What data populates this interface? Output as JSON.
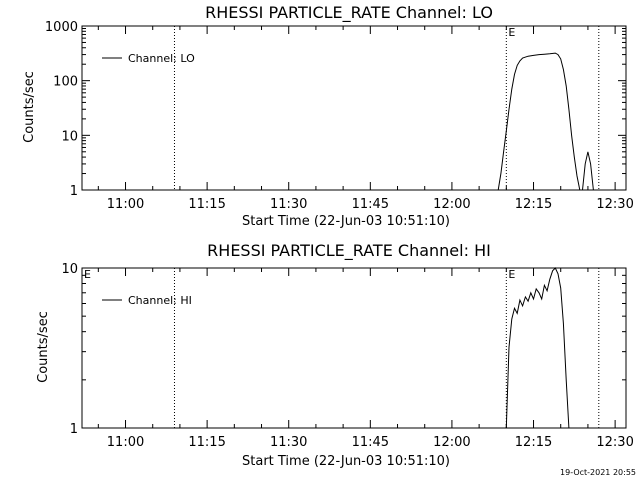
{
  "footer": {
    "timestamp": "19-Oct-2021 20:55"
  },
  "chart_data": [
    {
      "type": "line",
      "title": "RHESSI PARTICLE_RATE Channel: LO",
      "xlabel": "Start Time (22-Jun-03 10:51:10)",
      "ylabel": "Counts/sec",
      "y_scale": "log",
      "ylim": [
        1,
        1000
      ],
      "y_ticks": [
        {
          "value": 1,
          "label": "1"
        },
        {
          "value": 10,
          "label": "10"
        },
        {
          "value": 100,
          "label": "100"
        },
        {
          "value": 1000,
          "label": "1000"
        }
      ],
      "xlim": [
        "10:52",
        "12:32"
      ],
      "x_ticks": [
        "11:00",
        "11:15",
        "11:30",
        "11:45",
        "12:00",
        "12:15",
        "12:30"
      ],
      "grid": false,
      "legend": {
        "position": "top-left",
        "entries": [
          "Channel: LO"
        ]
      },
      "markers": [
        {
          "time": "11:09",
          "label": ""
        },
        {
          "time": "12:10",
          "label": "E"
        },
        {
          "time": "12:27",
          "label": ""
        }
      ],
      "series": [
        {
          "name": "Channel: LO",
          "segments": [
            [
              [
                "12:08:30",
                1
              ],
              [
                "12:09:00",
                2
              ],
              [
                "12:09:30",
                5
              ],
              [
                "12:10:00",
                12
              ],
              [
                "12:10:30",
                30
              ],
              [
                "12:11:00",
                70
              ],
              [
                "12:11:30",
                130
              ],
              [
                "12:12:00",
                190
              ],
              [
                "12:12:30",
                230
              ],
              [
                "12:13:00",
                260
              ],
              [
                "12:14:00",
                280
              ],
              [
                "12:15:00",
                290
              ],
              [
                "12:16:00",
                300
              ],
              [
                "12:17:00",
                305
              ],
              [
                "12:18:00",
                310
              ],
              [
                "12:19:00",
                320
              ],
              [
                "12:19:30",
                300
              ],
              [
                "12:20:00",
                250
              ],
              [
                "12:20:30",
                160
              ],
              [
                "12:21:00",
                80
              ],
              [
                "12:21:30",
                30
              ],
              [
                "12:22:00",
                10
              ],
              [
                "12:22:30",
                4
              ],
              [
                "12:23:00",
                1.8
              ],
              [
                "12:23:30",
                1
              ]
            ],
            [
              [
                "12:24:00",
                1
              ],
              [
                "12:24:30",
                3
              ],
              [
                "12:25:00",
                5
              ],
              [
                "12:25:30",
                3
              ],
              [
                "12:26:00",
                1
              ]
            ]
          ]
        }
      ]
    },
    {
      "type": "line",
      "title": "RHESSI PARTICLE_RATE Channel: HI",
      "xlabel": "Start Time (22-Jun-03 10:51:10)",
      "ylabel": "Counts/sec",
      "y_scale": "log",
      "ylim": [
        1,
        10
      ],
      "y_ticks": [
        {
          "value": 1,
          "label": "1"
        },
        {
          "value": 10,
          "label": "10"
        }
      ],
      "xlim": [
        "10:52",
        "12:32"
      ],
      "x_ticks": [
        "11:00",
        "11:15",
        "11:30",
        "11:45",
        "12:00",
        "12:15",
        "12:30"
      ],
      "grid": false,
      "legend": {
        "position": "top-left",
        "entries": [
          "Channel: HI"
        ]
      },
      "markers": [
        {
          "time": "10:52",
          "label": "E"
        },
        {
          "time": "11:09",
          "label": ""
        },
        {
          "time": "12:10",
          "label": "E"
        },
        {
          "time": "12:27",
          "label": ""
        }
      ],
      "series": [
        {
          "name": "Channel: HI",
          "segments": [
            [
              [
                "12:10:00",
                1
              ],
              [
                "12:10:30",
                3.2
              ],
              [
                "12:11:00",
                4.8
              ],
              [
                "12:11:30",
                5.6
              ],
              [
                "12:12:00",
                5.2
              ],
              [
                "12:12:30",
                6.3
              ],
              [
                "12:13:00",
                5.8
              ],
              [
                "12:13:30",
                6.6
              ],
              [
                "12:14:00",
                6.2
              ],
              [
                "12:14:30",
                7.0
              ],
              [
                "12:15:00",
                6.4
              ],
              [
                "12:15:30",
                7.4
              ],
              [
                "12:16:00",
                7.0
              ],
              [
                "12:16:30",
                6.4
              ],
              [
                "12:17:00",
                7.8
              ],
              [
                "12:17:30",
                7.2
              ],
              [
                "12:18:00",
                8.5
              ],
              [
                "12:18:30",
                9.6
              ],
              [
                "12:19:00",
                10.0
              ],
              [
                "12:19:30",
                9.2
              ],
              [
                "12:20:00",
                7.5
              ],
              [
                "12:20:30",
                4.5
              ],
              [
                "12:21:00",
                2.0
              ],
              [
                "12:21:30",
                1
              ]
            ]
          ]
        }
      ]
    }
  ]
}
